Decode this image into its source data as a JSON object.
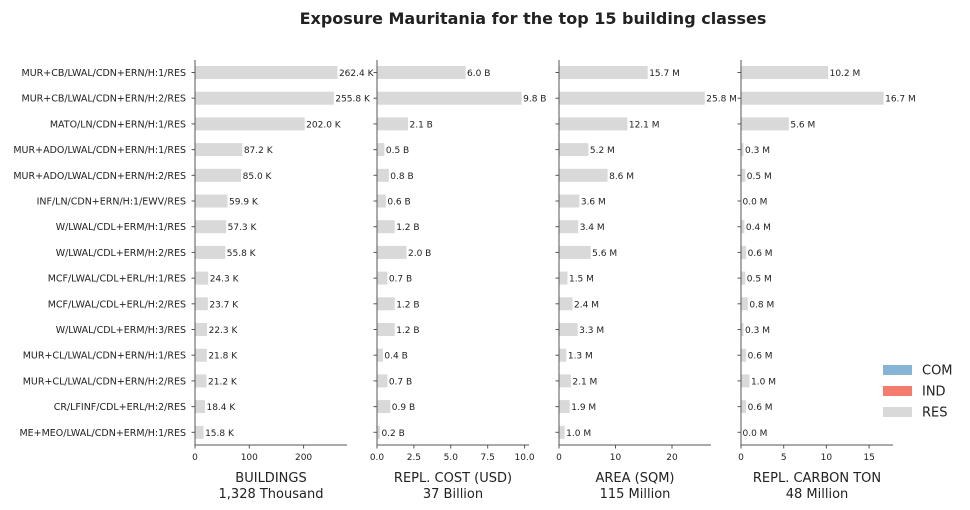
{
  "chart_data": {
    "type": "bar",
    "title": "Exposure Mauritania for the top 15 building classes",
    "categories": [
      "MUR+CB/LWAL/CDN+ERN/H:1/RES",
      "MUR+CB/LWAL/CDN+ERN/H:2/RES",
      "MATO/LN/CDN+ERN/H:1/RES",
      "MUR+ADO/LWAL/CDN+ERN/H:1/RES",
      "MUR+ADO/LWAL/CDN+ERN/H:2/RES",
      "INF/LN/CDN+ERN/H:1/EWV/RES",
      "W/LWAL/CDL+ERM/H:1/RES",
      "W/LWAL/CDL+ERM/H:2/RES",
      "MCF/LWAL/CDL+ERL/H:1/RES",
      "MCF/LWAL/CDL+ERL/H:2/RES",
      "W/LWAL/CDL+ERM/H:3/RES",
      "MUR+CL/LWAL/CDN+ERN/H:1/RES",
      "MUR+CL/LWAL/CDN+ERN/H:2/RES",
      "CR/LFINF/CDL+ERL/H:2/RES",
      "ME+MEO/LWAL/CDN+ERM/H:1/RES"
    ],
    "panels": [
      {
        "xlabel": "BUILDINGS",
        "total": "1,328 Thousand",
        "xlim": [
          0,
          280
        ],
        "ticks": [
          0,
          100,
          200
        ],
        "tick_labels": [
          "0",
          "100",
          "200"
        ],
        "values": [
          262.4,
          255.8,
          202.0,
          87.2,
          85.0,
          59.9,
          57.3,
          55.8,
          24.3,
          23.7,
          22.3,
          21.8,
          21.2,
          18.4,
          15.8
        ],
        "labels": [
          "262.4 K",
          "255.8 K",
          "202.0 K",
          "87.2 K",
          "85.0 K",
          "59.9 K",
          "57.3 K",
          "55.8 K",
          "24.3 K",
          "23.7 K",
          "22.3 K",
          "21.8 K",
          "21.2 K",
          "18.4 K",
          "15.8 K"
        ]
      },
      {
        "xlabel": "REPL. COST (USD)",
        "total": "37 Billion",
        "xlim": [
          0,
          10.3
        ],
        "ticks": [
          0,
          2.5,
          5.0,
          7.5,
          10.0
        ],
        "tick_labels": [
          "0.0",
          "2.5",
          "5.0",
          "7.5",
          "10.0"
        ],
        "values": [
          6.0,
          9.8,
          2.1,
          0.5,
          0.8,
          0.6,
          1.2,
          2.0,
          0.7,
          1.2,
          1.2,
          0.4,
          0.7,
          0.9,
          0.2
        ],
        "labels": [
          "6.0 B",
          "9.8 B",
          "2.1 B",
          "0.5 B",
          "0.8 B",
          "0.6 B",
          "1.2 B",
          "2.0 B",
          "0.7 B",
          "1.2 B",
          "1.2 B",
          "0.4 B",
          "0.7 B",
          "0.9 B",
          "0.2 B"
        ]
      },
      {
        "xlabel": "AREA (SQM)",
        "total": "115 Million",
        "xlim": [
          0,
          26.9
        ],
        "ticks": [
          0,
          10,
          20
        ],
        "tick_labels": [
          "0",
          "10",
          "20"
        ],
        "values": [
          15.7,
          25.8,
          12.1,
          5.2,
          8.6,
          3.6,
          3.4,
          5.6,
          1.5,
          2.4,
          3.3,
          1.3,
          2.1,
          1.9,
          1.0
        ],
        "labels": [
          "15.7 M",
          "25.8 M",
          "12.1 M",
          "5.2 M",
          "8.6 M",
          "3.6 M",
          "3.4 M",
          "5.6 M",
          "1.5 M",
          "2.4 M",
          "3.3 M",
          "1.3 M",
          "2.1 M",
          "1.9 M",
          "1.0 M"
        ]
      },
      {
        "xlabel": "REPL. CARBON TON",
        "total": "48 Million",
        "xlim": [
          0,
          17.8
        ],
        "ticks": [
          0,
          5,
          10,
          15
        ],
        "tick_labels": [
          "0",
          "5",
          "10",
          "15"
        ],
        "values": [
          10.2,
          16.7,
          5.6,
          0.3,
          0.5,
          0.0,
          0.4,
          0.6,
          0.5,
          0.8,
          0.3,
          0.6,
          1.0,
          0.6,
          0.0
        ],
        "labels": [
          "10.2 M",
          "16.7 M",
          "5.6 M",
          "0.3 M",
          "0.5 M",
          "0.0 M",
          "0.4 M",
          "0.6 M",
          "0.5 M",
          "0.8 M",
          "0.3 M",
          "0.6 M",
          "1.0 M",
          "0.6 M",
          "0.0 M"
        ]
      }
    ],
    "legend": {
      "placement": "right",
      "items": [
        {
          "name": "COM",
          "color": "#86b4d4"
        },
        {
          "name": "IND",
          "color": "#f47c6c"
        },
        {
          "name": "RES",
          "color": "#d9d9d9"
        }
      ]
    },
    "bar_color": "#d9d9d9",
    "axis_color": "#555555",
    "grid": false
  }
}
